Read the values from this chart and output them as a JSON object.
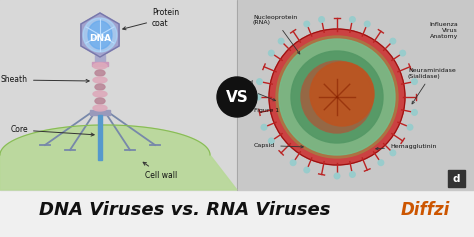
{
  "title": "DNA Viruses vs. RNA Viruses",
  "title_color": "#111111",
  "title_fontsize": 13,
  "bg_color": "#ffffff",
  "top_bg_color": "#d0d0d0",
  "vs_circle_color": "#111111",
  "vs_text_color": "#ffffff",
  "vs_text": "VS",
  "vs_fontsize": 11,
  "diffzi_color": "#cc5500",
  "diffzi_text": "Diffzi",
  "fig_width": 4.74,
  "fig_height": 2.37,
  "dpi": 100
}
